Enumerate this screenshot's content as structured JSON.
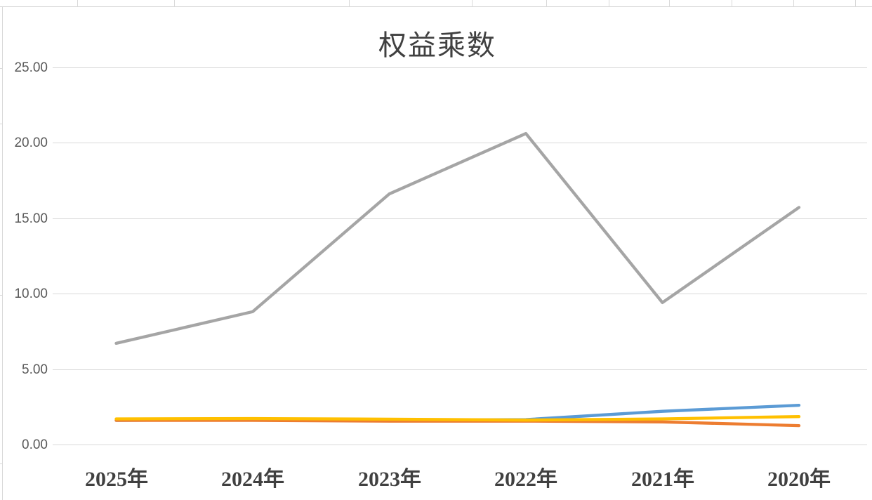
{
  "chart": {
    "title": "权益乘数"
  },
  "chart_data": {
    "type": "line",
    "title": "权益乘数",
    "categories": [
      "2025年",
      "2024年",
      "2023年",
      "2022年",
      "2021年",
      "2020年"
    ],
    "series": [
      {
        "name": "blue",
        "color": "#5B9BD5",
        "values": [
          1.6,
          1.65,
          1.6,
          1.65,
          2.2,
          2.6
        ]
      },
      {
        "name": "orange",
        "color": "#ED7D31",
        "values": [
          1.6,
          1.6,
          1.55,
          1.55,
          1.5,
          1.25
        ]
      },
      {
        "name": "gray",
        "color": "#A5A5A5",
        "values": [
          6.7,
          8.8,
          16.6,
          20.6,
          9.4,
          15.7
        ]
      },
      {
        "name": "yellow",
        "color": "#FFC000",
        "values": [
          1.7,
          1.72,
          1.68,
          1.62,
          1.7,
          1.85
        ]
      }
    ],
    "ylim": [
      0,
      25
    ],
    "y_ticks": [
      "25.00",
      "20.00",
      "15.00",
      "10.00",
      "5.00",
      "0.00"
    ],
    "grid": true,
    "legend": "none",
    "xlabel": "",
    "ylabel": ""
  }
}
